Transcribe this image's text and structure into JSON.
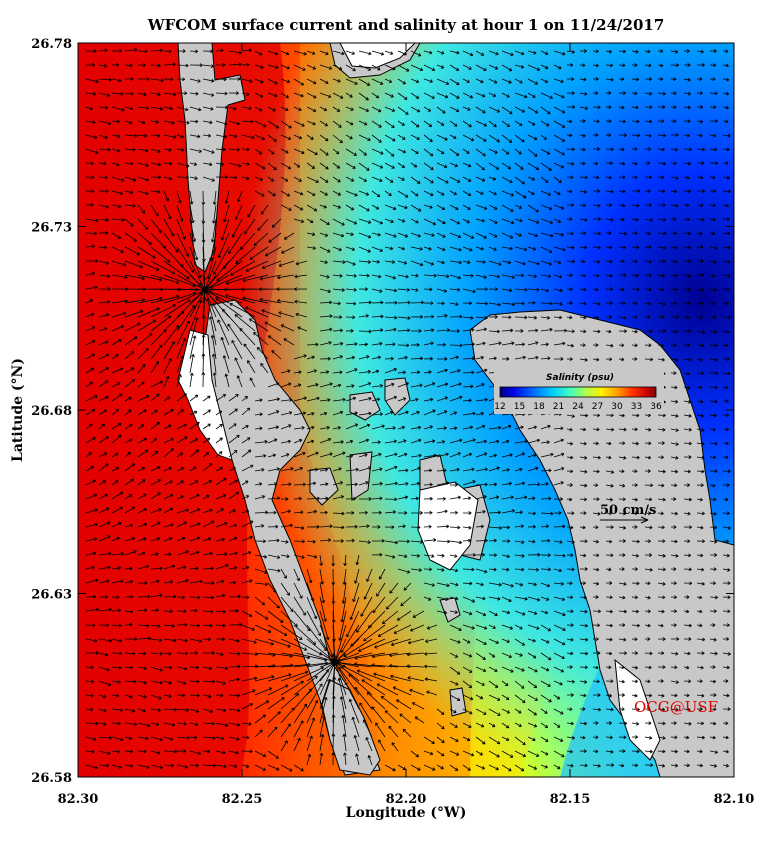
{
  "title": "WFCOM surface current and salinity at hour 1 on 11/24/2017",
  "x_axis": {
    "label": "Longitude (°W)",
    "range": [
      82.3,
      82.1
    ],
    "ticks": [
      "82.30",
      "82.25",
      "82.20",
      "82.15",
      "82.10"
    ]
  },
  "y_axis": {
    "label": "Latitude (°N)",
    "range": [
      26.58,
      26.78
    ],
    "ticks": [
      "26.78",
      "26.73",
      "26.68",
      "26.63",
      "26.58"
    ]
  },
  "colorbar": {
    "title": "Salinity (psu)",
    "range": [
      12,
      36
    ],
    "ticks": [
      "12",
      "15",
      "18",
      "21",
      "24",
      "27",
      "30",
      "33",
      "36"
    ],
    "colors": [
      "#00007f",
      "#0000d8",
      "#0040ff",
      "#0090ff",
      "#00d8ff",
      "#40ffc0",
      "#90ff70",
      "#d8ff20",
      "#fff000",
      "#ffb000",
      "#ff6000",
      "#ff1000",
      "#c00000",
      "#800000"
    ]
  },
  "vector_scale": {
    "label": "50 cm/s"
  },
  "credit": "OCG@USF",
  "colors": {
    "land": "#c8c8c8",
    "land_outline": "#000000",
    "dry": "#ffffff",
    "vector": "#000000"
  }
}
